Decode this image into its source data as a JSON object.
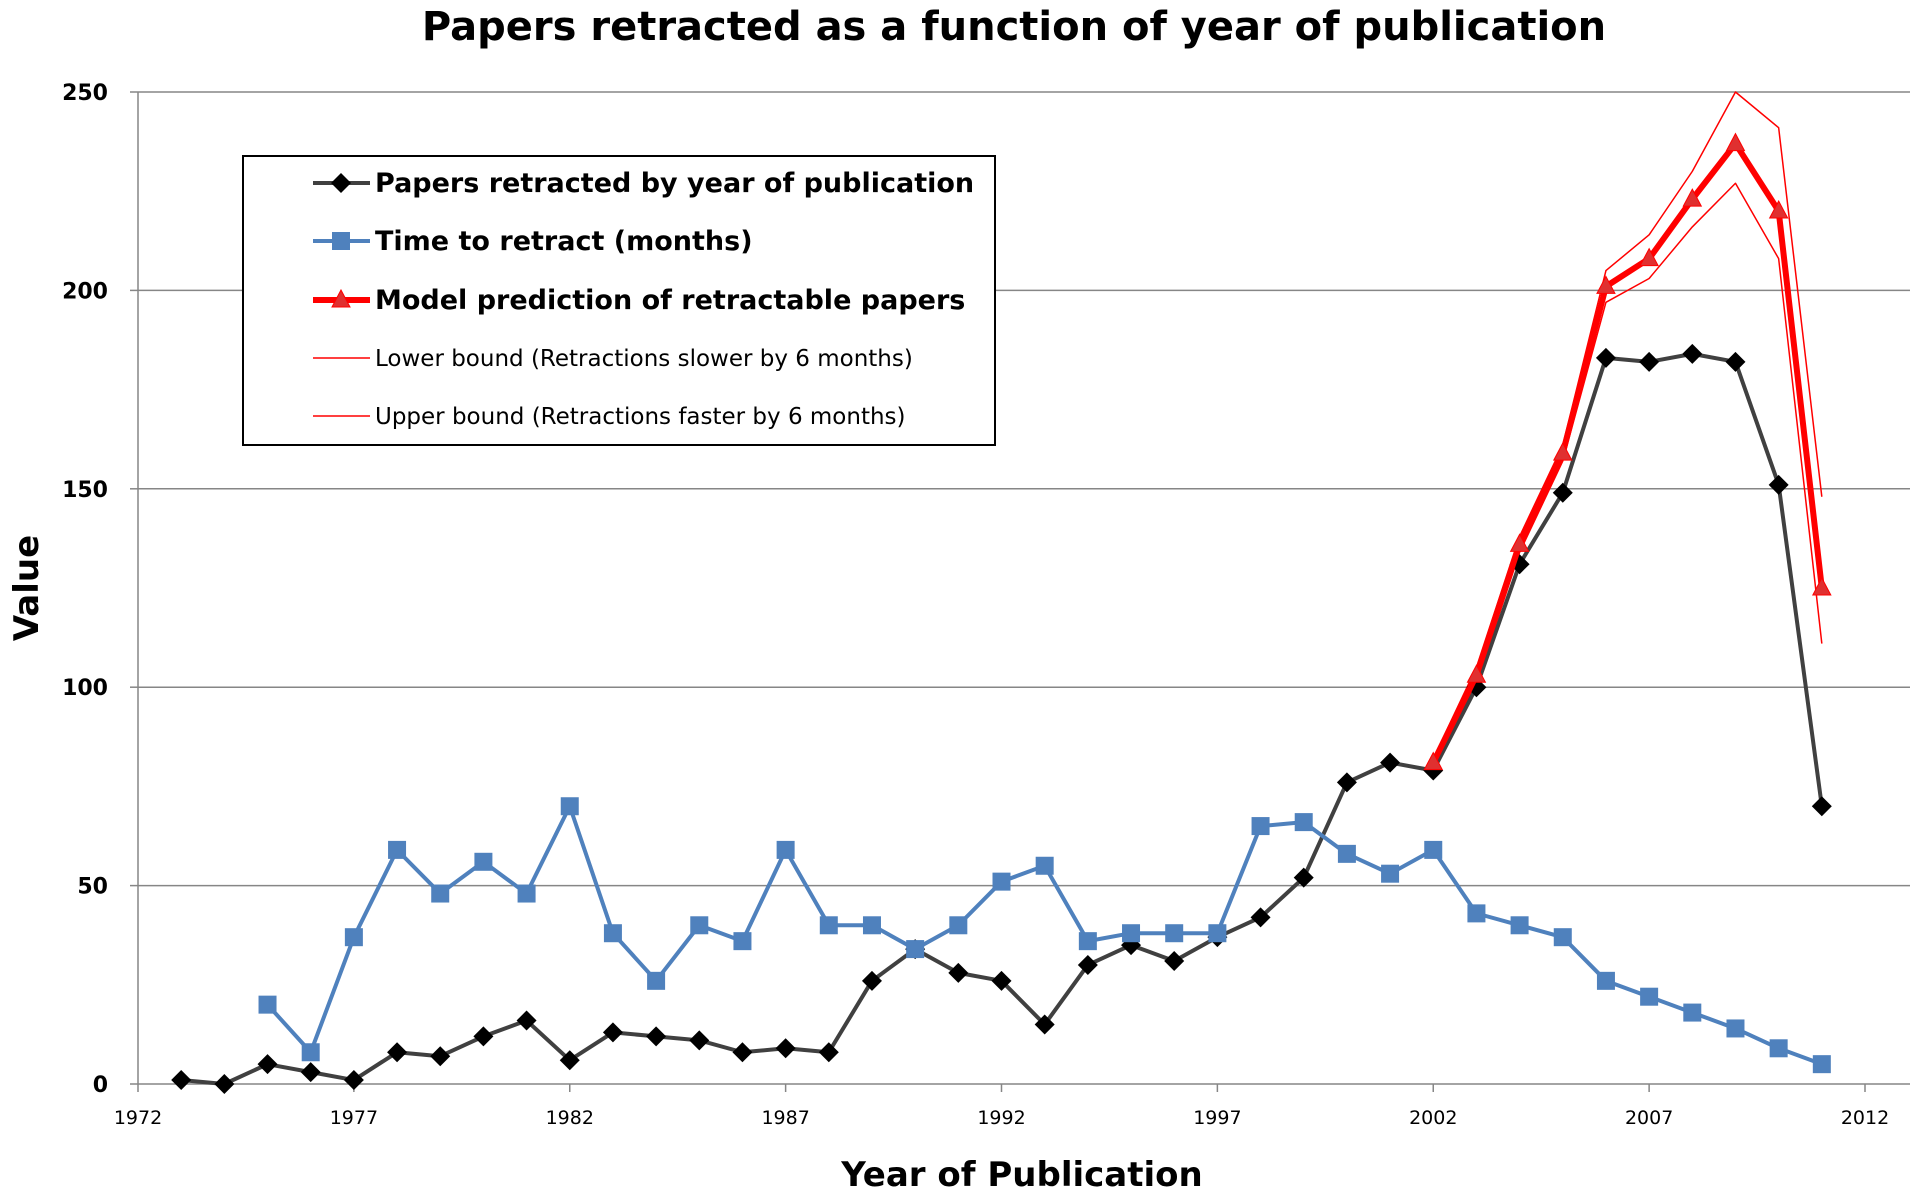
{
  "chart_data": {
    "type": "line",
    "title": "Papers retracted as a function of year of publication",
    "xlabel": "Year of Publication",
    "ylabel": "Value",
    "xlim": [
      1972,
      2012
    ],
    "ylim": [
      0,
      250
    ],
    "x_ticks": [
      "1972",
      "1977",
      "1982",
      "1987",
      "1992",
      "1997",
      "2002",
      "2007",
      "2012"
    ],
    "y_ticks": [
      "0",
      "50",
      "100",
      "150",
      "200",
      "250"
    ],
    "grid": "horizontal",
    "legend_position": "top-left",
    "series": [
      {
        "name": "Papers retracted by year of publication",
        "color": "#404040",
        "marker": "diamond",
        "marker_color": "#000000",
        "x": [
          1973,
          1974,
          1975,
          1976,
          1977,
          1978,
          1979,
          1980,
          1981,
          1982,
          1983,
          1984,
          1985,
          1986,
          1987,
          1988,
          1989,
          1990,
          1991,
          1992,
          1993,
          1994,
          1995,
          1996,
          1997,
          1998,
          1999,
          2000,
          2001,
          2002,
          2003,
          2004,
          2005,
          2006,
          2007,
          2008,
          2009,
          2010,
          2011
        ],
        "y": [
          1,
          0,
          5,
          3,
          1,
          8,
          7,
          12,
          16,
          6,
          13,
          12,
          11,
          8,
          9,
          8,
          26,
          34,
          28,
          26,
          15,
          30,
          35,
          31,
          37,
          42,
          52,
          76,
          81,
          79,
          100,
          131,
          149,
          183,
          182,
          184,
          182,
          151,
          70
        ]
      },
      {
        "name": "Time to retract (months)",
        "color": "#4f81bd",
        "marker": "square",
        "marker_color": "#4f81bd",
        "x": [
          1975,
          1976,
          1977,
          1978,
          1979,
          1980,
          1981,
          1982,
          1983,
          1984,
          1985,
          1986,
          1987,
          1988,
          1989,
          1990,
          1991,
          1992,
          1993,
          1994,
          1995,
          1996,
          1997,
          1998,
          1999,
          2000,
          2001,
          2002,
          2003,
          2004,
          2005,
          2006,
          2007,
          2008,
          2009,
          2010,
          2011
        ],
        "y": [
          20,
          8,
          37,
          59,
          48,
          56,
          48,
          70,
          38,
          26,
          40,
          36,
          59,
          40,
          40,
          34,
          40,
          51,
          55,
          36,
          38,
          38,
          38,
          65,
          66,
          58,
          53,
          59,
          43,
          40,
          37,
          26,
          22,
          18,
          14,
          9,
          5
        ]
      },
      {
        "name": "Model prediction of retractable papers",
        "color": "#ff0000",
        "marker": "triangle",
        "marker_color": "#e03030",
        "width": "thick",
        "x": [
          2002,
          2003,
          2004,
          2005,
          2006,
          2007,
          2008,
          2009,
          2010,
          2011
        ],
        "y": [
          81,
          103,
          136,
          159,
          201,
          208,
          223,
          237,
          220,
          125
        ]
      },
      {
        "name": "Lower bound (Retractions slower by 6 months)",
        "color": "#ff0000",
        "marker": "none",
        "width": "thin",
        "x": [
          2002,
          2003,
          2004,
          2005,
          2006,
          2007,
          2008,
          2009,
          2010,
          2011
        ],
        "y": [
          80,
          101,
          134,
          157,
          197,
          203,
          216,
          227,
          208,
          111
        ]
      },
      {
        "name": "Upper bound (Retractions faster by 6 months)",
        "color": "#ff0000",
        "marker": "none",
        "width": "thin",
        "x": [
          2002,
          2003,
          2004,
          2005,
          2006,
          2007,
          2008,
          2009,
          2010,
          2011
        ],
        "y": [
          82,
          105,
          138,
          161,
          205,
          214,
          230,
          250,
          241,
          148
        ]
      }
    ]
  }
}
